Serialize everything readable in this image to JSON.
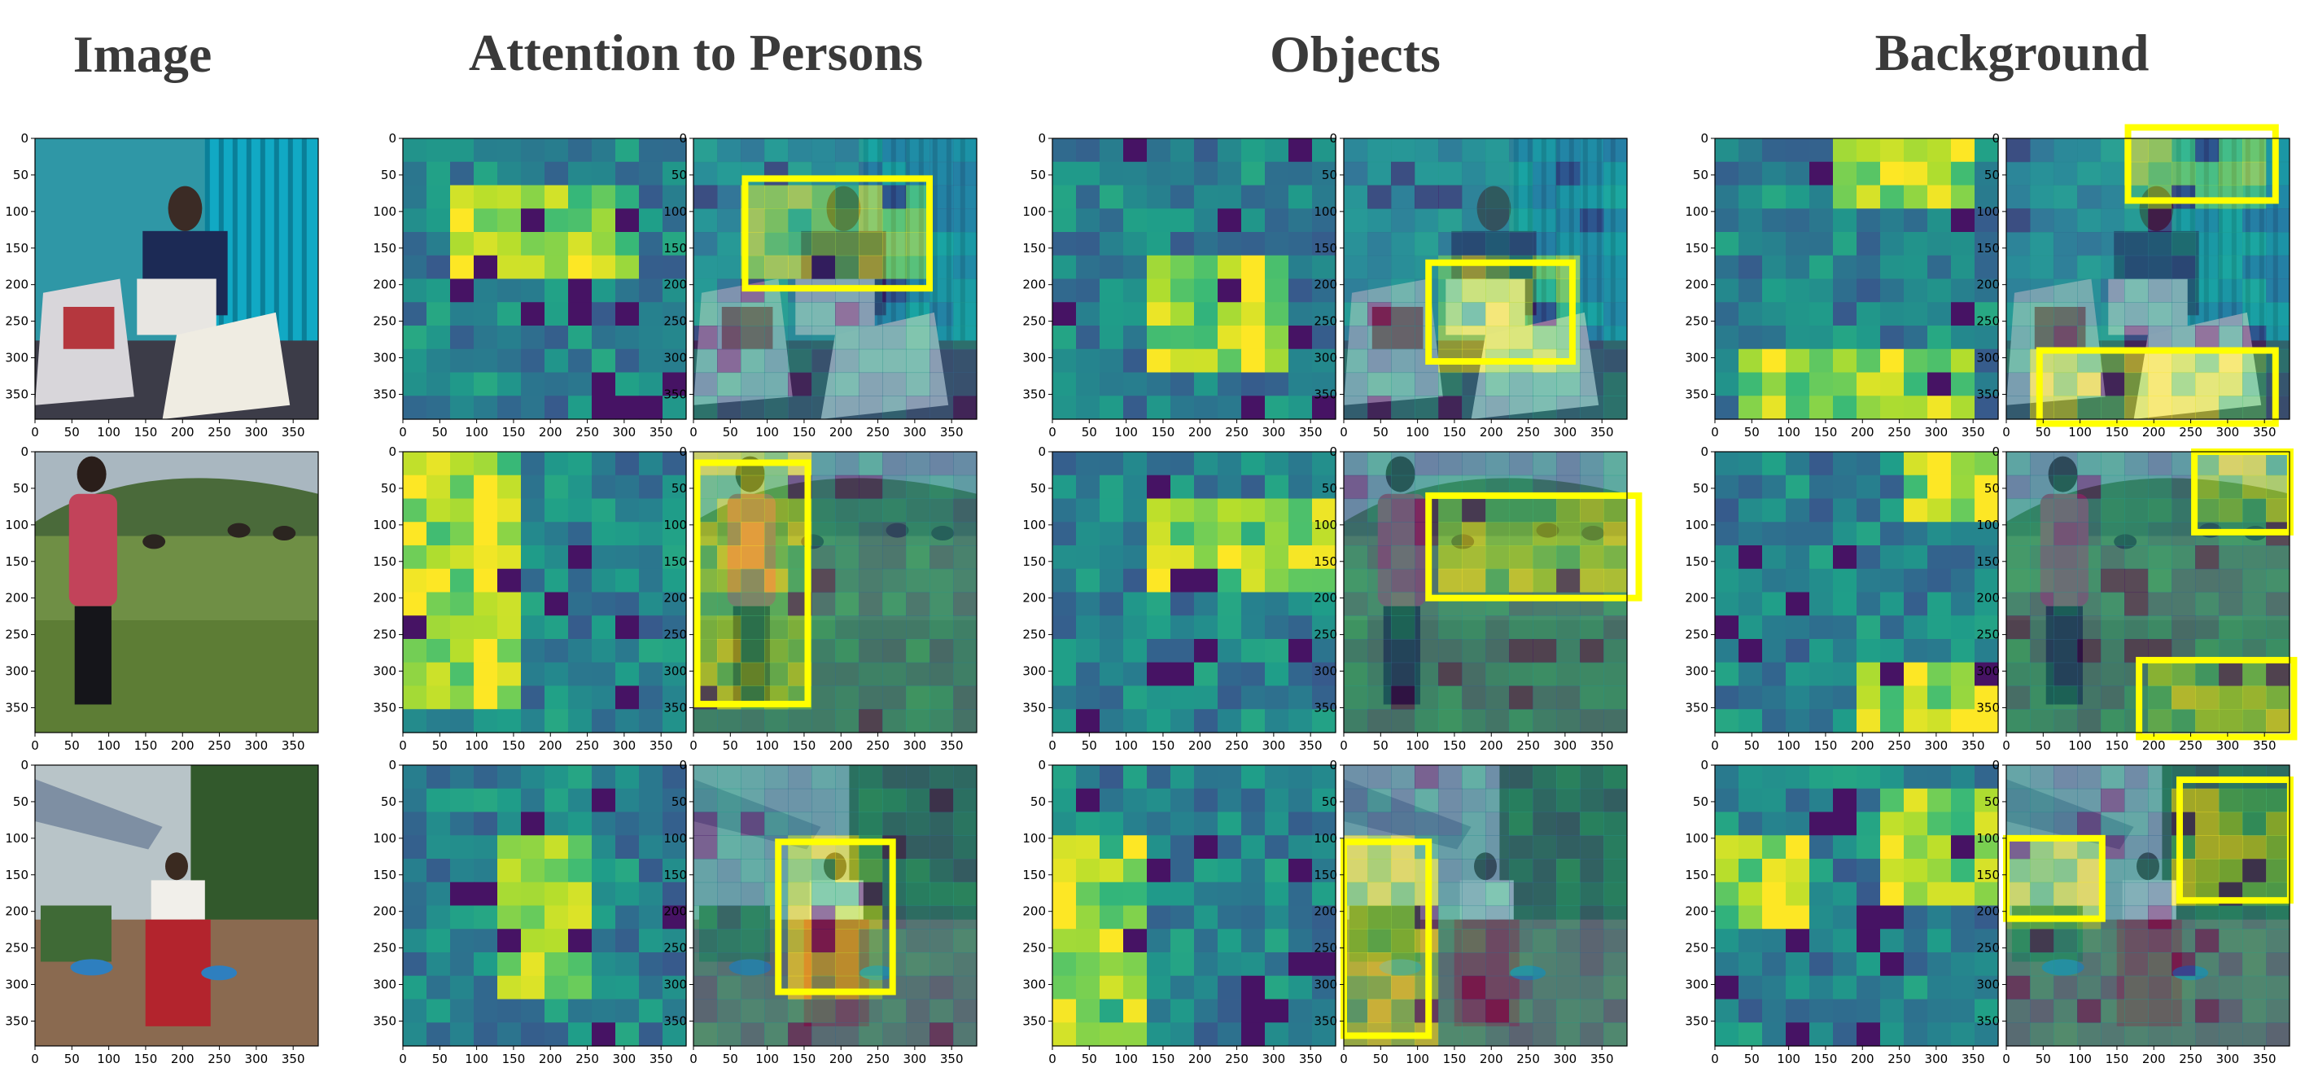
{
  "headers": {
    "image": "Image",
    "persons": "Attention to Persons",
    "objects": "Objects",
    "background": "Background"
  },
  "axis_ticks": {
    "x": [
      "0",
      "50",
      "100",
      "150",
      "200",
      "250",
      "300",
      "350"
    ],
    "y": [
      "0",
      "50",
      "100",
      "150",
      "200",
      "250",
      "300",
      "350"
    ],
    "range": [
      0,
      384
    ]
  },
  "colors": {
    "highlight_box": "#ffff00",
    "colormap": "viridis"
  },
  "rows": [
    {
      "scene": "indoor-sewing",
      "boxes": {
        "persons": [
          [
            70,
            55,
            320,
            205
          ]
        ],
        "objects": [
          [
            115,
            170,
            310,
            305
          ]
        ],
        "background": [
          [
            165,
            -15,
            365,
            85
          ],
          [
            45,
            290,
            365,
            390
          ]
        ]
      }
    },
    {
      "scene": "field-with-cows",
      "boxes": {
        "persons": [
          [
            5,
            15,
            155,
            345
          ]
        ],
        "objects": [
          [
            115,
            60,
            400,
            200
          ]
        ],
        "background": [
          [
            255,
            0,
            385,
            110
          ],
          [
            180,
            285,
            390,
            390
          ]
        ]
      }
    },
    {
      "scene": "outdoor-house",
      "boxes": {
        "persons": [
          [
            115,
            105,
            270,
            310
          ]
        ],
        "objects": [
          [
            0,
            105,
            115,
            370
          ]
        ],
        "background": [
          [
            0,
            100,
            130,
            210
          ],
          [
            235,
            20,
            385,
            185
          ]
        ]
      }
    }
  ]
}
